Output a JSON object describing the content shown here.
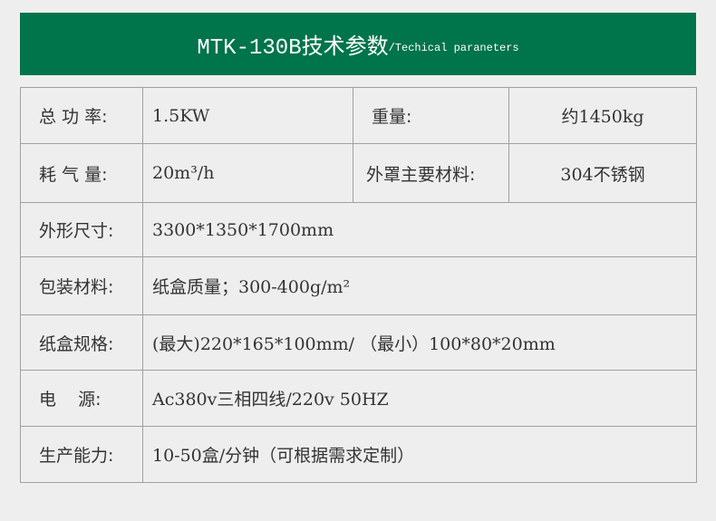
{
  "header": {
    "title": "MTK-130B",
    "title_cn": "技术参数",
    "subtitle": "/Techical paraneters",
    "color": "#00744b"
  },
  "rows": [
    {
      "label": "总 功 率:",
      "value": "1.5KW",
      "label2": "重量:",
      "value2": "约1450kg"
    },
    {
      "label": "耗 气 量:",
      "value": "20m³/h",
      "label2": "外罩主要材料:",
      "value2": "304不锈钢"
    },
    {
      "label": "外形尺寸:",
      "value": "3300*1350*1700mm"
    },
    {
      "label": "包装材料:",
      "value": "纸盒质量；300-400g/m²"
    },
    {
      "label": "纸盒规格:",
      "value": "(最大)220*165*100mm/ （最小）100*80*20mm"
    },
    {
      "label": "电    源:",
      "value": "Ac380v三相四线/220v 50HZ"
    },
    {
      "label": "生产能力:",
      "value": "10-50盒/分钟（可根据需求定制）"
    }
  ]
}
